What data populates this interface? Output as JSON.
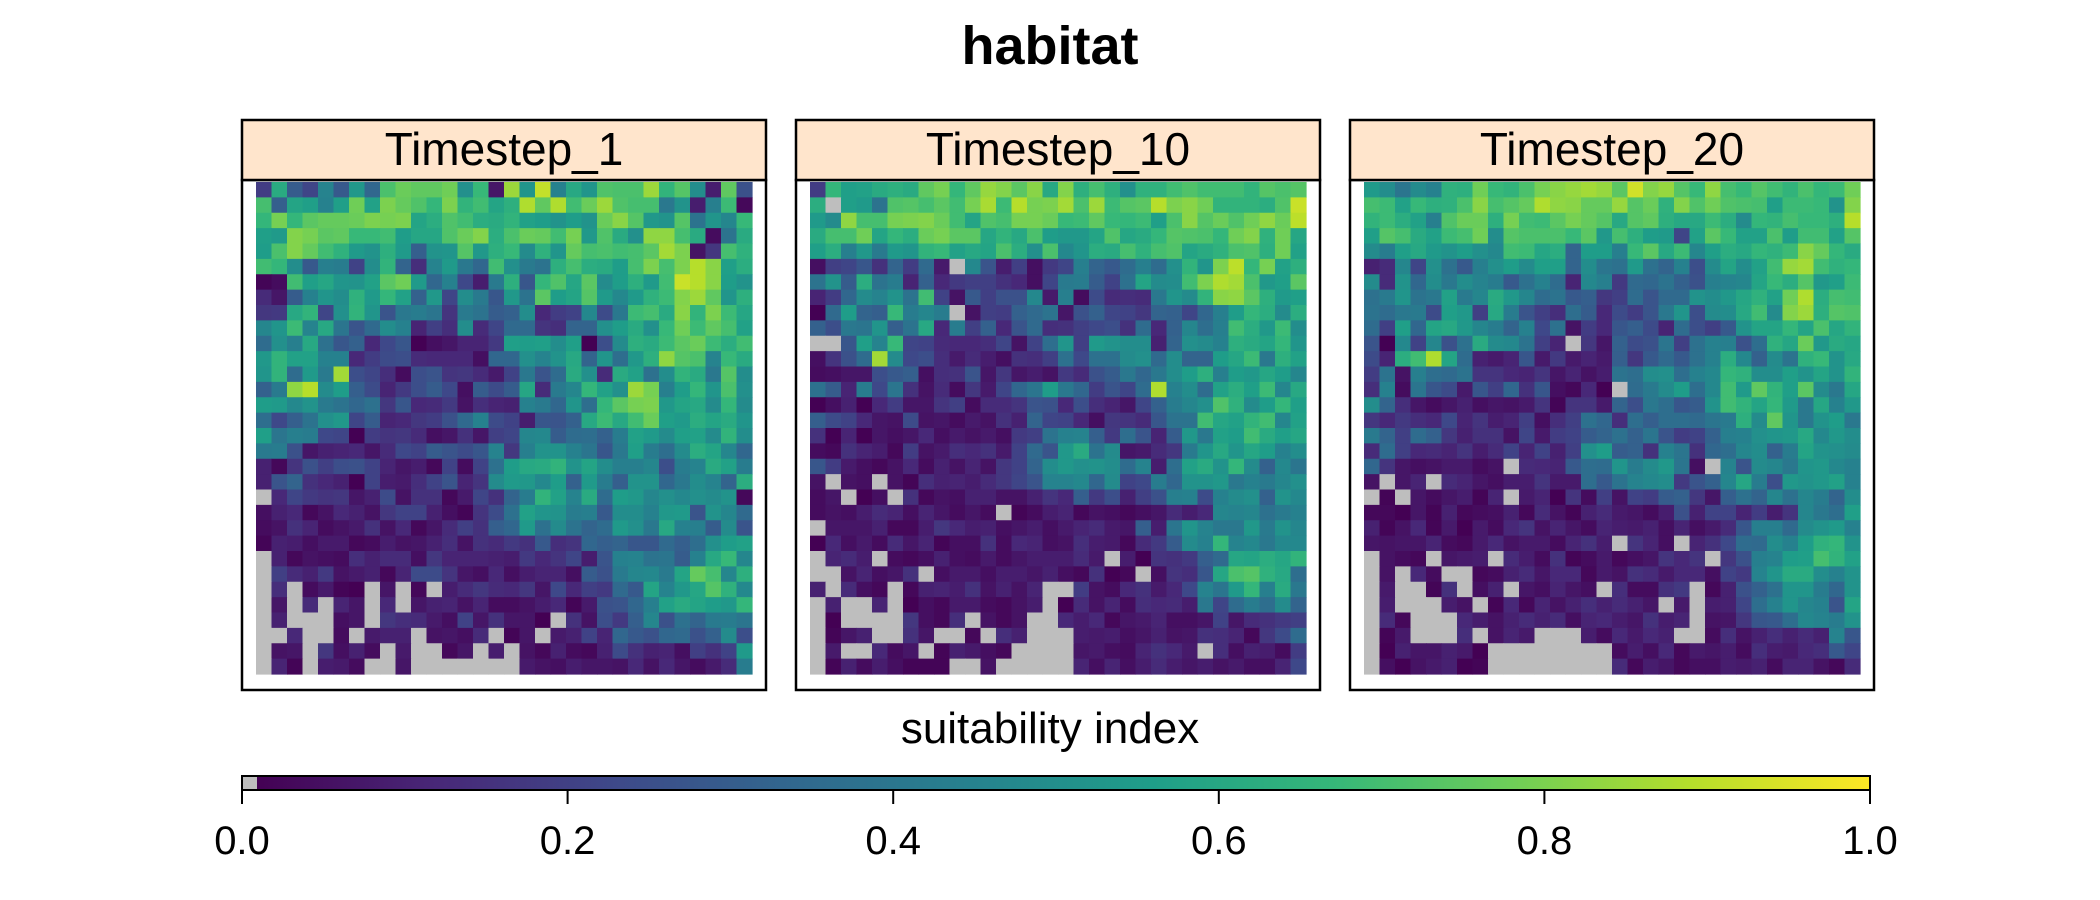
{
  "chart_data": {
    "type": "heatmap",
    "title": "habitat",
    "legend_title": "suitability index",
    "colorbar": {
      "range": [
        0.0,
        1.0
      ],
      "ticks": [
        "0.0",
        "0.2",
        "0.4",
        "0.6",
        "0.8",
        "1.0"
      ],
      "na_color": "#bebebe",
      "palette": [
        "#440154",
        "#482878",
        "#3e4989",
        "#31688e",
        "#26828e",
        "#1f9e89",
        "#35b779",
        "#6ece58",
        "#b5de2b",
        "#fde725"
      ],
      "placement": "bottom"
    },
    "grid_size": [
      32,
      32
    ],
    "panels": [
      {
        "label": "Timestep_1",
        "rows": [
          "0.18 0.61 0.29 0.21 0.45 0.28 0.53 0.33 0.71 0.77 0.75 0.75 0.78 0.50 0.67 0.06 0.85 0.52 0.91 0.44 0.60 0.52 0.72 0.71 0.71 0.85 0.65 0.73 0.49 0.08 0.75 0.25",
          "0.70 0.30 0.58 0.56 0.44 0.56 0.78 0.57 0.80 0.76 0.72 0.66 0.80 0.65 0.69 0.58 0.63 0.88 0.75 0.88 0.69 0.77 0.85 0.72 0.70 0.70 0.40 0.51 0.08 0.43 0.68 0.02",
          "0.66 0.79 0.66 0.74 0.76 0.76 0.77 0.80 0.79 0.80 0.58 0.62 0.72 0.69 0.62 0.61 0.65 0.57 0.55 0.51 0.55 0.51 0.77 0.82 0.73 0.53 0.51 0.73 0.38 0.52 0.46 0.67",
          "0.56 0.54 0.81 0.79 0.74 0.75 0.67 0.67 0.69 0.55 0.59 0.59 0.72 0.77 0.81 0.62 0.71 0.77 0.76 0.69 0.79 0.53 0.72 0.61 0.50 0.83 0.83 0.70 0.61 0.03 0.38 0.61",
          "0.55 0.71 0.81 0.76 0.69 0.64 0.54 0.51 0.63 0.54 0.30 0.51 0.52 0.73 0.53 0.63 0.67 0.48 0.64 0.52 0.76 0.70 0.71 0.69 0.70 0.74 0.86 0.80 0.05 0.16 0.70 0.64",
          "0.69 0.66 0.49 0.28 0.43 0.42 0.20 0.49 0.65 0.32 0.13 0.45 0.54 0.40 0.33 0.69 0.50 0.41 0.38 0.63 0.70 0.62 0.61 0.55 0.70 0.80 0.70 0.80 0.89 0.82 0.56 0.62",
          "0.01 0.03 0.69 0.56 0.59 0.52 0.51 0.57 0.74 0.78 0.54 0.33 0.44 0.22 0.08 0.41 0.63 0.27 0.66 0.72 0.59 0.74 0.48 0.55 0.63 0.54 0.69 0.92 0.89 0.82 0.55 0.51",
          "0.12 0.06 0.29 0.44 0.52 0.49 0.64 0.54 0.66 0.57 0.31 0.53 0.21 0.49 0.41 0.27 0.53 0.38 0.74 0.55 0.58 0.73 0.54 0.47 0.54 0.64 0.68 0.81 0.85 0.75 0.52 0.63",
          "0.16 0.17 0.60 0.65 0.21 0.50 0.65 0.52 0.26 0.40 0.42 0.39 0.15 0.41 0.38 0.29 0.31 0.49 0.11 0.18 0.20 0.47 0.23 0.40 0.68 0.70 0.61 0.82 0.65 0.80 0.68 0.59",
          "0.46 0.52 0.68 0.45 0.60 0.39 0.26 0.34 0.49 0.44 0.10 0.19 0.13 0.49 0.12 0.21 0.34 0.34 0.15 0.13 0.32 0.32 0.50 0.55 0.61 0.50 0.67 0.78 0.68 0.75 0.70 0.57",
          "0.35 0.50 0.43 0.60 0.37 0.27 0.31 0.11 0.22 0.27 0.00 0.04 0.06 0.10 0.10 0.17 0.56 0.55 0.56 0.49 0.56 0.00 0.24 0.48 0.63 0.61 0.68 0.74 0.77 0.68 0.62 0.69",
          "0.53 0.65 0.57 0.57 0.44 0.44 0.11 0.18 0.23 0.24 0.12 0.11 0.11 0.11 0.04 0.33 0.33 0.50 0.45 0.51 0.60 0.32 0.52 0.36 0.53 0.63 0.83 0.73 0.71 0.45 0.67 0.61",
          "0.52 0.65 0.35 0.54 0.41 0.86 0.24 0.21 0.13 0.03 0.24 0.26 0.15 0.16 0.12 0.07 0.20 0.40 0.26 0.35 0.61 0.50 0.12 0.61 0.57 0.37 0.49 0.65 0.61 0.40 0.73 0.49",
          "0.31 0.41 0.83 0.89 0.48 0.55 0.30 0.23 0.10 0.17 0.24 0.29 0.22 0.04 0.29 0.23 0.29 0.59 0.12 0.41 0.46 0.66 0.57 0.50 0.85 0.79 0.43 0.55 0.66 0.52 0.71 0.50",
          "0.55 0.54 0.47 0.51 0.41 0.38 0.33 0.37 0.16 0.27 0.11 0.12 0.17 0.05 0.13 0.10 0.09 0.44 0.41 0.33 0.52 0.36 0.66 0.74 0.79 0.80 0.53 0.58 0.60 0.48 0.66 0.48",
          "0.36 0.22 0.30 0.38 0.50 0.53 0.21 0.29 0.10 0.11 0.16 0.18 0.25 0.34 0.44 0.23 0.20 0.08 0.27 0.26 0.31 0.60 0.68 0.60 0.69 0.77 0.56 0.54 0.62 0.58 0.61 0.52",
          "0.56 0.39 0.43 0.42 0.22 0.21 0.00 0.18 0.15 0.16 0.12 0.04 0.06 0.14 0.06 0.19 0.21 0.46 0.47 0.29 0.35 0.36 0.31 0.42 0.57 0.54 0.48 0.56 0.57 0.48 0.65 0.49",
          "0.41 0.42 0.25 0.06 0.09 0.10 0.11 0.06 0.12 0.22 0.20 0.29 0.26 0.23 0.27 0.45 0.16 0.43 0.51 0.51 0.44 0.39 0.27 0.40 0.56 0.42 0.36 0.48 0.62 0.58 0.46 0.33",
          "0.09 0.02 0.15 0.25 0.19 0.24 0.25 0.20 0.10 0.06 0.08 0.02 0.20 0.03 0.20 0.37 0.55 0.60 0.61 0.65 0.51 0.58 0.49 0.43 0.43 0.46 0.24 0.42 0.45 0.61 0.57 0.42",
          "0.09 0.26 0.32 0.14 0.11 0.09 0.00 0.20 0.08 0.07 0.13 0.20 0.26 0.10 0.15 0.48 0.54 0.53 0.47 0.55 0.31 0.54 0.42 0.30 0.51 0.51 0.33 0.40 0.49 0.45 0.32 0.62",
          "-1 0.11 0.21 0.17 0.15 0.16 0.06 0.09 0.23 0.05 0.14 0.14 0.02 0.07 0.21 0.14 0.32 0.42 0.65 0.57 0.45 0.61 0.35 0.55 0.53 0.46 0.50 0.47 0.50 0.48 0.51 0.02",
          "0.04 0.09 0.11 0.02 0.05 0.11 0.09 0.05 0.16 0.20 0.20 0.09 0.04 0.01 0.15 0.23 0.37 0.57 0.52 0.51 0.42 0.43 0.28 0.49 0.49 0.44 0.53 0.54 0.26 0.51 0.46 0.34",
          "0.03 0.05 0.14 0.10 0.03 0.05 0.07 0.14 0.05 0.11 0.02 0.06 0.12 0.19 0.14 0.30 0.33 0.54 0.37 0.48 0.38 0.32 0.35 0.54 0.50 0.40 0.60 0.44 0.43 0.29 0.48 0.26",
          "0.01 0.09 0.08 0.04 0.07 0.07 0.02 0.03 0.08 0.05 0.06 0.09 0.13 0.05 0.14 0.12 0.17 0.14 0.28 0.13 0.15 0.33 0.30 0.32 0.27 0.27 0.34 0.30 0.36 0.50 0.55 0.57",
          "-1 0.09 0.02 0.05 0.04 0.03 0.13 0.09 0.12 0.12 0.04 0.16 0.10 0.10 0.10 0.09 0.08 0.17 0.11 0.15 0.21 0.08 0.26 0.44 0.45 0.38 0.39 0.29 0.44 0.60 0.67 0.46",
          "-1 0.19 0.12 0.09 0.17 0.05 0.07 0.09 0.02 0.10 0.23 0.23 0.15 0.06 0.04 0.11 0.04 0.08 0.10 0.10 0.04 0.29 0.25 0.41 0.46 0.47 0.41 0.58 0.76 0.70 0.46 0.63",
          "-1 0.13 -1 0.03 0.07 0.01 0.00 -1 0.06 -1 0.02 -1 0.08 0.12 0.16 0.12 0.11 0.16 0.06 0.22 0.11 0.19 0.17 0.34 0.28 0.58 0.45 0.53 0.59 0.73 0.64 0.47",
          "-1 0.06 -1 0.12 -1 0.10 0.06 -1 0.11 -1 0.06 0.09 0.10 0.05 0.10 0.03 0.03 0.05 0.08 0.11 0.01 0.07 0.25 0.26 0.33 0.43 0.57 0.61 0.58 0.55 0.53 0.66",
          "-1 0.09 -1 -1 -1 0.04 0.06 -1 0.16 0.13 0.12 0.07 0.04 0.20 0.06 0.14 0.06 0.06 0.00 -1 0.14 0.05 0.24 0.17 0.30 0.46 0.25 0.37 0.32 0.41 0.42 0.39",
          "-1 -1 0.11 -1 -1 0.03 -1 0.07 0.09 0.09 -1 0.05 0.06 0.04 0.12 -1 0.01 0.06 -1 0.07 0.09 0.20 0.10 0.33 0.28 0.25 0.33 0.34 0.25 0.31 0.48 0.24",
          "-1 0.05 0.06 -1 0.16 0.04 0.09 0.03 -1 0.07 -1 -1 0.02 0.06 -1 0.08 -1 0.05 0.02 0.09 0.03 0.02 0.09 0.23 0.14 0.09 0.10 0.04 0.19 0.14 0.20 0.54",
          "-1 0.10 0.01 -1 0.08 0.07 0.03 -1 -1 0.06 -1 -1 -1 -1 -1 -1 -1 0.07 0.05 0.04 0.08 0.06 0.06 0.05 0.11 0.05 0.11 0.06 0.03 0.07 0.12 0.42"
        ]
      },
      {
        "label": "Timestep_10",
        "rows": [
          "0.18 0.66 0.56 0.57 0.61 0.63 0.61 0.75 0.79 0.66 0.75 0.84 0.81 0.74 0.82 0.60 0.81 0.63 0.70 0.63 0.50 0.64 0.64 0.69 0.72 0.69 0.69 0.69 0.65 0.73 0.71 0.73",
          "0.62 -1 0.56 0.54 0.38 0.72 0.73 0.70 0.74 0.69 0.79 0.87 0.68 0.89 0.79 0.80 0.86 0.71 0.85 0.68 0.73 0.74 0.89 0.80 0.82 0.78 0.65 0.65 0.65 0.62 0.72 0.92",
          "0.54 0.48 0.83 0.70 0.70 0.79 0.80 0.81 0.77 0.69 0.58 0.72 0.70 0.79 0.79 0.77 0.67 0.68 0.75 0.67 0.66 0.68 0.56 0.71 0.82 0.73 0.77 0.72 0.78 0.83 0.77 0.90",
          "0.61 0.70 0.70 0.78 0.58 0.66 0.62 0.77 0.79 0.74 0.74 0.59 0.65 0.60 0.71 0.55 0.53 0.53 0.58 0.72 0.59 0.61 0.66 0.73 0.72 0.71 0.66 0.78 0.81 0.64 0.78 0.59",
          "0.56 0.62 0.43 0.53 0.41 0.54 0.52 0.65 0.67 0.57 0.60 0.58 0.71 0.62 0.50 0.71 0.47 0.52 0.62 0.61 0.70 0.64 0.70 0.72 0.58 0.61 0.64 0.71 0.72 0.63 0.78 0.57",
          "0.04 0.19 0.21 0.27 0.14 0.32 0.18 0.34 0.07 -1 0.47 0.26 0.08 0.19 0.04 0.17 0.21 0.43 0.32 0.28 0.35 0.43 0.35 0.50 0.65 0.52 0.80 0.90 0.66 0.79 0.57 0.63",
          "0.38 0.51 0.29 0.62 0.38 0.42 0.10 0.31 0.11 0.17 0.19 0.19 0.14 0.11 0.04 0.21 0.41 0.42 0.29 0.20 0.37 0.58 0.48 0.49 0.69 0.80 0.88 0.86 0.71 0.53 0.56 0.74",
          "0.10 0.18 0.33 0.48 0.45 0.51 0.38 0.69 0.20 0.05 0.28 0.19 0.25 0.25 0.47 0.07 0.43 0.03 0.23 0.12 0.13 0.12 0.40 0.52 0.48 0.65 0.82 0.83 0.74 0.63 0.54 0.56",
          "0.00 0.34 0.55 0.32 0.30 0.67 0.42 0.46 0.42 -1 0.05 0.19 0.18 0.31 0.34 0.38 0.06 0.25 0.31 0.21 0.20 0.16 0.32 0.31 0.21 0.33 0.43 0.55 0.66 0.62 0.48 0.62",
          "0.31 0.24 0.40 0.39 0.52 0.30 0.38 0.60 0.11 0.42 0.19 0.31 0.11 0.26 0.34 0.13 0.14 0.19 0.22 0.24 0.14 0.35 0.11 0.31 0.46 0.36 0.43 0.69 0.62 0.53 0.68 0.49",
          "-1 -1 0.27 0.56 0.45 0.67 0.21 0.20 0.12 0.11 0.11 0.13 0.21 0.05 0.20 0.36 0.52 0.19 0.54 0.51 0.49 0.49 0.09 0.32 0.50 0.48 0.44 0.63 0.61 0.58 0.66 0.52",
          "0.04 0.15 0.25 0.35 0.86 0.48 0.22 0.24 0.13 0.07 0.12 0.08 0.04 0.14 0.13 0.19 0.37 0.22 0.37 0.37 0.48 0.50 0.34 0.49 0.32 0.32 0.55 0.59 0.68 0.40 0.63 0.57",
          "0.03 0.04 0.06 0.06 0.24 0.28 0.30 0.04 0.13 0.14 0.26 0.06 0.16 0.06 0.08 0.05 0.17 0.12 0.25 0.29 0.40 0.33 0.40 0.49 0.55 0.63 0.43 0.55 0.53 0.59 0.55 0.46",
          "0.37 0.29 0.10 0.42 0.22 0.39 0.14 0.05 0.12 0.03 0.16 0.07 0.21 0.33 0.39 0.55 0.40 0.33 0.18 0.26 0.21 0.35 0.88 0.44 0.49 0.35 0.57 0.62 0.56 0.68 0.46 0.60",
          "0.00 0.04 0.09 0.00 0.11 0.18 0.06 0.06 0.15 0.19 0.03 0.12 0.12 0.15 0.26 0.25 0.11 0.24 0.13 0.10 0.06 0.21 0.31 0.42 0.46 0.50 0.72 0.64 0.48 0.55 0.66 0.56",
          "0.30 0.23 0.20 0.11 0.06 0.05 0.23 0.05 0.06 0.03 0.07 0.05 0.14 0.09 0.32 0.21 0.20 0.11 0.04 0.16 0.15 0.12 0.27 0.38 0.38 0.69 0.59 0.57 0.65 0.69 0.46 0.57",
          "0.14 0.00 0.10 0.00 0.06 0.04 0.06 0.11 0.04 0.07 0.05 0.07 0.04 0.17 0.19 0.38 0.44 0.45 0.30 0.17 0.36 0.26 0.10 0.29 0.53 0.40 0.57 0.55 0.69 0.61 0.56 0.59",
          "0.03 0.02 0.14 0.10 0.08 0.02 0.18 0.05 0.07 0.13 0.11 0.14 0.07 0.20 0.34 0.26 0.53 0.61 0.38 0.48 0.06 0.07 0.12 0.16 0.41 0.52 0.60 0.52 0.59 0.55 0.44 0.49",
          "0.27 0.18 0.07 0.04 0.02 0.05 0.11 0.03 0.09 0.05 0.10 0.05 0.16 0.20 0.32 0.49 0.53 0.50 0.51 0.49 0.35 0.45 0.08 0.36 0.57 0.61 0.51 0.66 0.48 0.31 0.47 0.39",
          "0.05 -1 0.05 0.04 -1 0.05 0.01 0.13 0.09 0.10 0.08 0.12 0.16 0.21 0.26 0.45 0.45 0.47 0.33 0.48 0.20 0.22 0.42 0.33 0.51 0.51 0.53 0.40 0.44 0.41 0.46 0.50",
          "0.03 0.06 -1 0.00 0.04 -1 0.14 0.02 0.05 0.04 0.09 0.09 0.05 0.05 0.09 0.15 0.11 0.30 0.17 0.24 0.09 0.19 0.25 0.43 0.44 0.23 0.44 0.48 0.50 0.31 0.51 0.47",
          "0.03 0.05 0.04 0.08 0.12 0.10 0.04 0.10 0.06 0.03 0.06 0.03 -1 0.01 0.03 0.08 0.10 0.02 0.05 0.04 0.02 0.04 0.06 0.12 0.08 0.11 0.46 0.45 0.46 0.37 0.41 0.44",
          "-1 0.06 0.06 0.06 0.09 0.02 0.02 0.08 0.16 0.11 0.08 0.09 0.04 0.06 0.08 0.04 0.07 0.10 0.12 0.07 0.06 0.30 0.08 0.39 0.52 0.45 0.40 0.40 0.53 0.41 0.51 0.46",
          "0.00 0.11 0.04 0.07 0.03 0.12 0.06 0.10 0.01 0.04 0.04 0.14 0.03 0.11 0.10 0.04 0.05 0.13 0.08 0.07 0.02 0.12 0.17 0.29 0.48 0.44 0.66 0.45 0.47 0.40 0.47 0.47",
          "-1 0.10 0.12 0.08 -1 0.03 0.02 0.04 0.09 0.04 0.03 0.07 0.03 0.06 0.08 0.08 0.08 0.12 0.07 -1 0.08 0.00 0.15 0.14 0.17 0.30 0.34 0.59 0.58 0.62 0.59 0.65",
          "-1 -1 0.05 0.10 0.04 0.06 0.14 -1 0.04 0.07 0.07 0.04 0.08 0.08 0.06 0.09 0.04 0.02 0.14 0.00 0.02 -1 0.04 0.15 0.13 0.27 0.59 0.71 0.73 0.64 0.60 0.36",
          "0.09 -1 0.12 0.04 0.02 -1 0.02 0.09 0.10 0.08 0.14 0.05 0.09 0.05 0.10 -1 -1 0.18 0.05 0.03 0.11 0.14 0.07 0.11 0.22 0.45 0.39 0.54 0.66 0.43 0.61 0.40",
          "-1 0.09 -1 -1 0.10 -1 0.00 0.04 0.02 0.07 0.07 0.03 0.02 0.05 0.08 -1 0.00 0.12 0.05 0.10 0.03 0.13 0.11 0.12 0.08 0.40 0.21 0.35 0.42 0.36 0.48 0.32",
          "-1 0.00 -1 -1 -1 -1 0.16 0.04 0.02 0.13 -1 0.05 0.02 0.05 -1 -1 0.11 0.08 0.11 0.02 0.06 0.07 0.10 0.04 0.04 0.06 0.20 0.06 0.12 0.14 0.17 0.19",
          "-1 0.01 0.06 0.09 -1 -1 0.14 0.06 -1 -1 0.02 -1 0.13 0.09 -1 -1 -1 0.08 0.07 0.08 0.04 0.06 0.09 0.05 0.06 0.14 0.13 0.10 0.02 0.16 0.23 0.35",
          "-1 0.07 -1 -1 0.11 0.03 0.06 -1 0.01 0.09 0.07 0.04 0.02 -1 -1 -1 -1 0.06 0.07 0.04 0.03 0.10 0.14 0.11 0.07 -1 0.13 0.04 0.09 0.08 0.03 0.18",
          "-1 0.01 0.09 0.03 0.08 0.04 0.01 0.01 0.01 -1 -1 0.05 -1 -1 -1 -1 -1 0.10 0.04 0.10 0.04 0.08 0.12 0.08 0.06 0.08 0.05 0.07 0.04 0.04 0.10 0.22"
        ]
      },
      {
        "label": "Timestep_20",
        "rows": [
          "0.54 0.49 0.39 0.48 0.44 0.64 0.63 0.78 0.67 0.65 0.71 0.79 0.82 0.84 0.86 0.84 0.74 0.93 0.81 0.84 0.73 0.67 0.83 0.70 0.67 0.73 0.69 0.65 0.71 0.66 0.68 0.78",
          "0.70 0.68 0.57 0.67 0.63 0.64 0.71 0.82 0.70 0.73 0.76 0.88 0.83 0.82 0.76 0.76 0.84 0.73 0.77 0.64 0.81 0.72 0.78 0.72 0.71 0.70 0.56 0.68 0.68 0.67 0.51 0.81",
          "0.65 0.68 0.62 0.57 0.43 0.72 0.77 0.77 0.63 0.79 0.69 0.68 0.74 0.79 0.76 0.73 0.60 0.73 0.75 0.63 0.60 0.60 0.68 0.62 0.48 0.66 0.65 0.70 0.67 0.67 0.63 0.89",
          "0.56 0.73 0.70 0.61 0.57 0.68 0.70 0.78 0.49 0.73 0.71 0.71 0.71 0.67 0.74 0.53 0.70 0.63 0.55 0.54 0.21 0.57 0.74 0.67 0.57 0.57 0.71 0.55 0.69 0.69 0.57 0.73",
          "0.48 0.42 0.56 0.60 0.54 0.51 0.55 0.50 0.47 0.69 0.68 0.59 0.62 0.32 0.55 0.55 0.43 0.67 0.74 0.60 0.68 0.46 0.56 0.62 0.60 0.66 0.64 0.68 0.82 0.76 0.66 0.61",
          "0.09 0.12 0.46 0.21 0.50 0.37 0.28 0.43 0.50 0.55 0.48 0.56 0.56 0.32 0.49 0.39 0.37 0.54 0.37 0.32 0.44 0.24 0.48 0.58 0.49 0.57 0.69 0.84 0.86 0.69 0.64 0.66",
          "0.48 0.12 0.51 0.33 0.49 0.40 0.49 0.45 0.42 0.28 0.37 0.44 0.35 0.10 0.47 0.43 0.17 0.34 0.33 0.38 0.31 0.25 0.43 0.45 0.46 0.58 0.67 0.62 0.73 0.53 0.56 0.68",
          "0.37 0.41 0.52 0.38 0.40 0.57 0.41 0.46 0.61 0.53 0.46 0.35 0.38 0.28 0.30 0.16 0.19 0.35 0.26 0.34 0.34 0.51 0.49 0.53 0.59 0.64 0.57 0.78 0.88 0.62 0.70 0.69",
          "0.38 0.35 0.40 0.41 0.23 0.56 0.53 0.19 0.60 0.42 0.26 0.19 0.13 0.36 0.29 0.11 0.23 0.18 0.26 0.40 0.52 0.24 0.48 0.49 0.60 0.69 0.48 0.81 0.85 0.63 0.73 0.72",
          "0.35 0.19 0.56 0.33 0.58 0.60 0.53 0.46 0.42 0.32 0.44 0.22 0.37 0.05 0.18 0.11 0.27 0.30 0.23 0.10 0.35 0.24 0.19 0.28 0.51 0.58 0.58 0.66 0.58 0.71 0.59 0.65",
          "0.26 0.00 0.47 0.20 0.46 0.25 0.37 0.61 0.48 0.47 0.38 0.19 0.10 -1 0.16 0.06 0.31 0.23 0.25 0.39 0.19 0.37 0.44 0.43 0.25 0.36 0.64 0.59 0.77 0.53 0.61 0.59",
          "0.23 0.10 0.62 0.69 0.88 0.58 0.35 0.09 0.07 0.10 0.27 0.07 0.17 0.07 0.10 0.07 0.30 0.16 0.28 0.34 0.28 0.37 0.44 0.62 0.47 0.31 0.48 0.38 0.64 0.67 0.51 0.60",
          "0.18 0.38 0.05 0.43 0.36 0.34 0.38 0.15 0.15 0.11 0.10 0.15 0.06 0.10 0.05 0.08 0.38 0.36 0.49 0.50 0.36 0.44 0.47 0.66 0.64 0.49 0.49 0.56 0.51 0.58 0.51 0.65",
          "0.13 0.44 0.03 0.39 0.27 0.23 0.07 0.27 0.19 0.33 0.14 0.27 0.04 0.02 0.11 0.00 -1 0.35 0.41 0.48 0.55 0.36 0.47 0.69 0.54 0.75 0.65 0.56 0.74 0.48 0.40 0.59",
          "0.49 0.32 0.13 0.06 0.03 0.06 0.09 0.04 0.06 0.05 0.07 0.15 0.01 0.15 0.15 0.07 0.32 0.24 0.40 0.36 0.27 0.29 0.51 0.69 0.65 0.58 0.66 0.54 0.40 0.59 0.44 0.53",
          "0.16 0.11 0.17 0.13 0.11 0.22 0.10 0.15 0.08 0.10 0.19 0.04 0.13 0.19 0.37 0.33 0.13 0.36 0.30 0.36 0.36 0.34 0.39 0.41 0.63 0.48 0.75 0.52 0.40 0.51 0.55 0.40",
          "0.41 0.32 0.19 0.35 0.31 0.16 0.09 0.14 0.14 0.05 0.21 0.07 0.18 0.20 0.29 0.32 0.37 0.31 0.39 0.26 0.18 0.20 0.31 0.43 0.44 0.50 0.52 0.53 0.60 0.47 0.53 0.49",
          "0.12 0.35 0.19 0.11 0.12 0.10 0.15 0.08 0.12 0.20 0.10 0.20 0.09 0.19 0.50 0.55 0.29 0.31 0.14 0.44 0.39 0.14 0.33 0.36 0.46 0.49 0.31 0.42 0.58 0.51 0.50 0.48",
          "0.33 0.15 0.06 0.04 0.05 0.07 0.07 0.03 0.05 -1 0.12 0.11 0.10 0.28 0.36 0.35 0.52 0.42 0.48 0.53 0.39 0.04 -1 0.45 0.26 0.48 0.46 0.40 0.52 0.53 0.47 0.44",
          "0.05 -1 0.06 0.10 -1 0.12 0.10 0.06 0.04 0.08 0.08 0.15 0.07 0.07 0.36 0.28 0.38 0.45 0.47 0.49 0.17 0.26 0.31 0.46 0.59 0.42 0.24 0.53 0.51 0.53 0.57 0.44",
          "-1 0.01 -1 0.06 0.03 0.06 0.08 0.01 0.10 -1 0.07 0.10 0.00 0.15 0.03 0.19 0.05 0.20 0.18 0.29 0.31 0.16 0.06 0.30 0.37 0.32 0.46 0.37 0.46 0.42 0.32 0.49",
          "0.02 0.02 0.00 0.06 0.01 0.09 0.02 0.03 0.04 0.09 0.02 0.12 0.05 0.01 0.09 0.12 0.07 0.06 0.03 0.08 0.25 0.09 0.20 0.20 0.10 0.18 0.08 0.15 0.46 0.40 0.36 0.56",
          "0.09 0.01 0.05 0.11 0.01 0.07 0.00 0.07 0.03 0.11 0.15 0.05 0.10 0.06 0.03 0.10 0.08 0.07 0.09 0.04 0.10 0.04 0.07 0.12 0.27 0.43 0.43 0.34 0.48 0.51 0.54 0.44",
          "0.06 0.05 0.06 0.06 0.10 0.03 0.02 0.07 0.11 0.05 0.07 0.07 0.03 0.10 0.14 0.08 -1 0.15 0.10 0.04 -1 0.10 0.14 0.22 0.35 0.34 0.49 0.44 0.55 0.64 0.66 0.51",
          "-1 0.05 0.03 0.02 -1 0.06 0.07 0.08 -1 0.12 0.08 0.03 0.14 0.01 0.03 0.07 0.02 0.04 0.06 0.15 0.11 0.15 -1 0.16 0.25 0.43 0.45 0.55 0.56 0.70 0.65 0.57",
          "-1 0.05 -1 0.11 0.03 -1 -1 0.02 0.03 0.09 0.12 0.06 0.11 0.11 0.02 0.07 0.05 0.14 0.12 0.07 0.11 0.11 0.04 0.20 0.17 0.45 0.52 0.61 0.61 0.49 0.44 0.51",
          "-1 0.07 -1 -1 0.01 0.14 -1 0.04 0.09 -1 0.06 0.04 0.10 0.06 0.04 -1 0.13 0.03 0.03 0.14 0.17 -1 0.02 0.09 0.25 0.31 0.37 0.52 0.52 0.42 0.33 0.51",
          "-1 0.08 -1 -1 -1 0.08 0.05 -1 0.01 0.11 0.02 0.10 0.05 0.09 0.13 0.09 0.12 0.09 0.06 -1 0.07 -1 0.08 0.09 0.21 0.36 0.44 0.52 0.46 0.44 0.26 0.58",
          "-1 0.12 0.02 -1 -1 -1 0.11 0.08 0.05 0.09 0.12 0.09 0.12 0.04 0.10 0.11 0.08 0.06 0.14 0.08 0.10 -1 0.05 0.06 0.16 0.27 0.28 0.36 0.47 0.45 0.42 0.51",
          "-1 0.01 0.07 -1 -1 -1 0.13 -1 0.05 0.10 0.07 -1 -1 -1 0.08 0.03 0.11 0.07 0.11 0.09 -1 -1 0.03 0.13 0.05 0.09 0.13 0.09 0.12 0.09 0.45 0.27",
          "-1 0.00 0.09 0.06 0.06 0.09 0.07 0.00 -1 -1 -1 -1 -1 -1 -1 -1 0.03 0.08 0.04 0.11 0.02 0.07 0.06 0.08 0.03 0.13 0.08 0.07 0.11 0.13 0.28 0.21",
          "-1 0.04 0.00 0.05 0.07 0.09 0.00 0.01 -1 -1 -1 -1 -1 -1 -1 -1 0.12 0.02 0.08 0.06 0.02 0.04 0.04 0.08 0.07 0.09 0.03 0.10 0.10 0.05 0.02 0.12"
        ]
      }
    ]
  }
}
